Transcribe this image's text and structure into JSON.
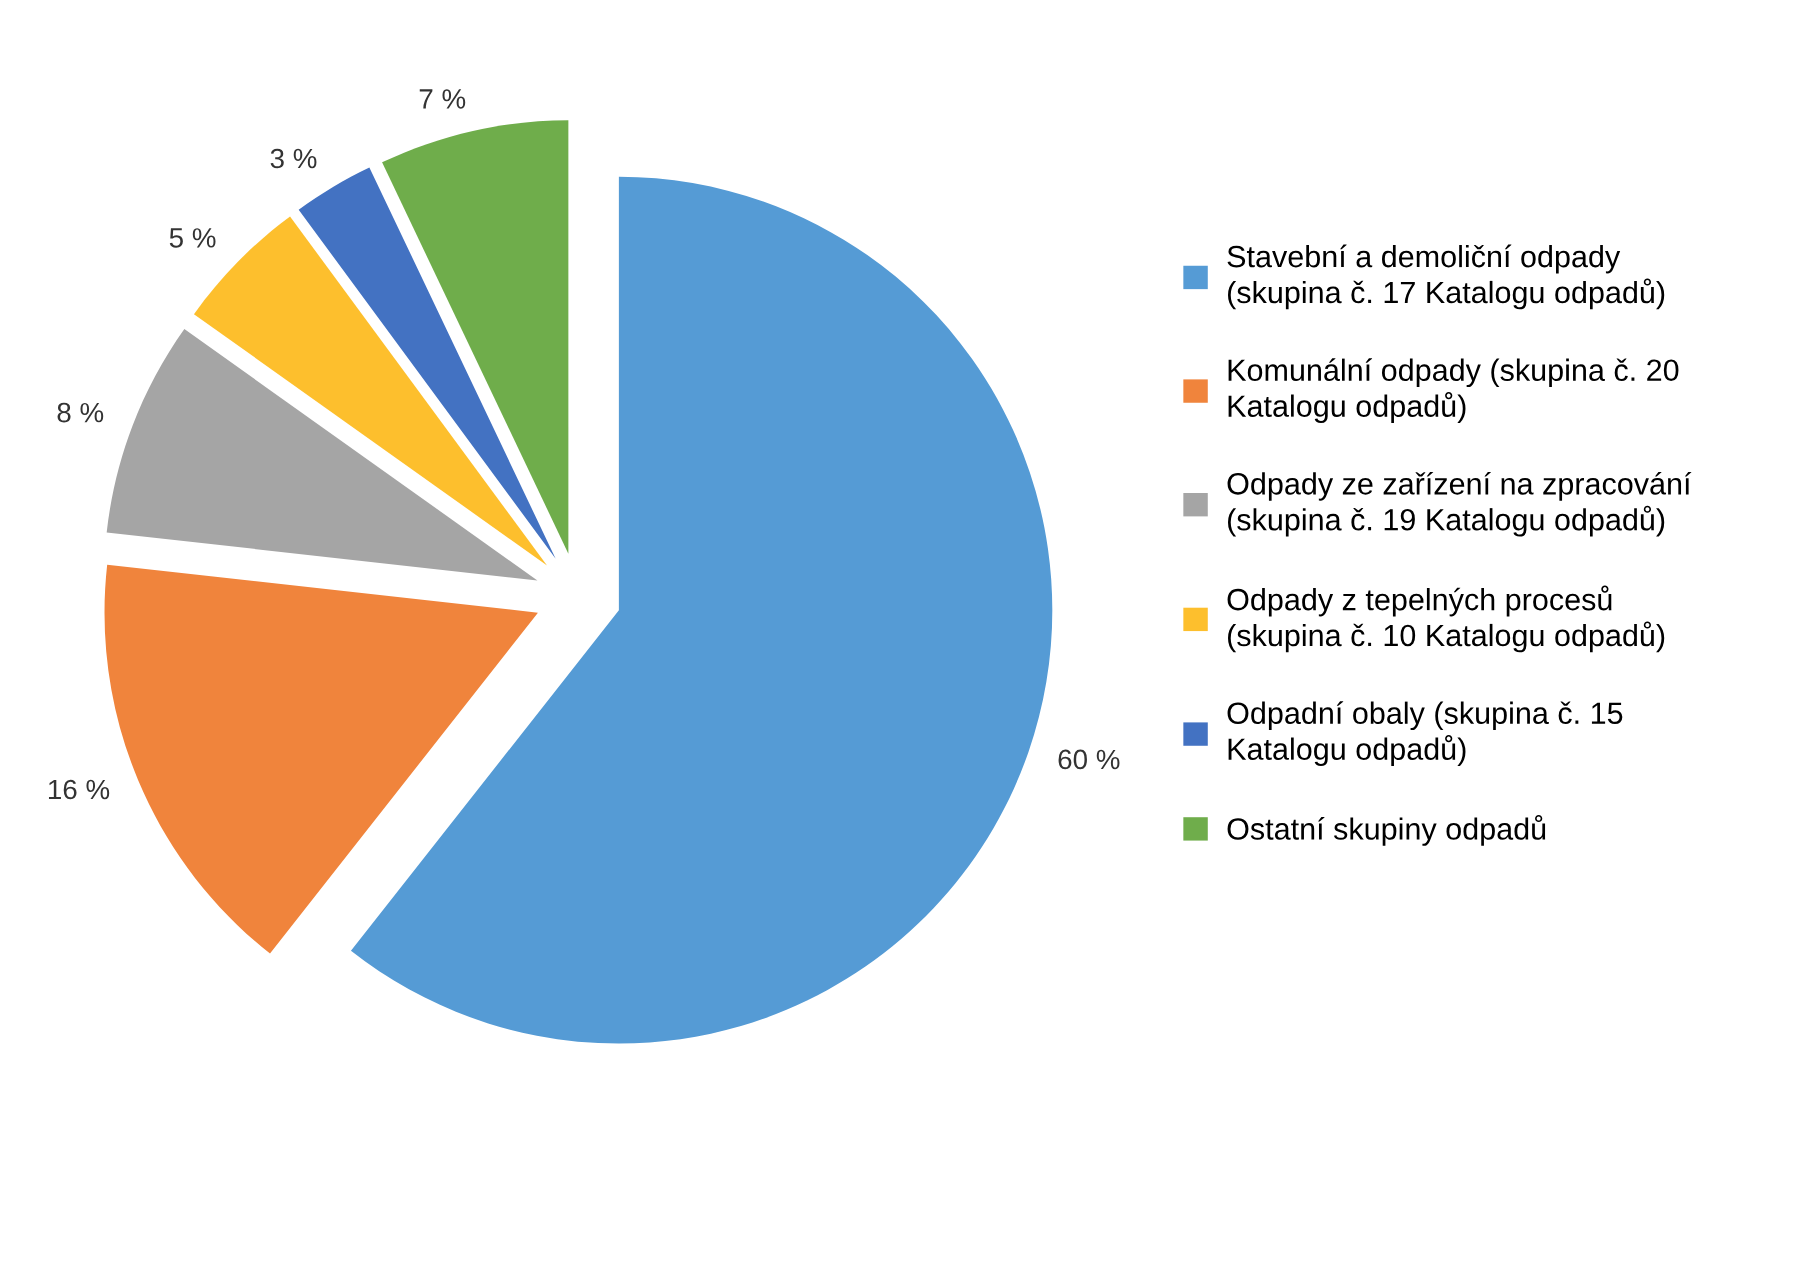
{
  "chart_data": {
    "type": "pie",
    "categories": [
      "Stavební a demoliční odpady (skupina č. 17 Katalogu odpadů)",
      "Komunální odpady (skupina č. 20 Katalogu odpadů)",
      "Odpady ze zařízení na zpracování (skupina č. 19 Katalogu odpadů)",
      "Odpady z tepelných procesů (skupina č. 10 Katalogu odpadů)",
      "Odpadní obaly (skupina č. 15 Katalogu odpadů)",
      "Ostatní skupiny odpadů"
    ],
    "values": [
      60,
      16,
      8,
      5,
      3,
      7
    ],
    "value_labels": [
      "60 %",
      "16 %",
      "8 %",
      "5 %",
      "3 %",
      "7 %"
    ],
    "colors": [
      "#559bd5",
      "#f0843c",
      "#a5a5a5",
      "#fdbf2d",
      "#4372c2",
      "#6fad4b"
    ],
    "legend": "right"
  }
}
